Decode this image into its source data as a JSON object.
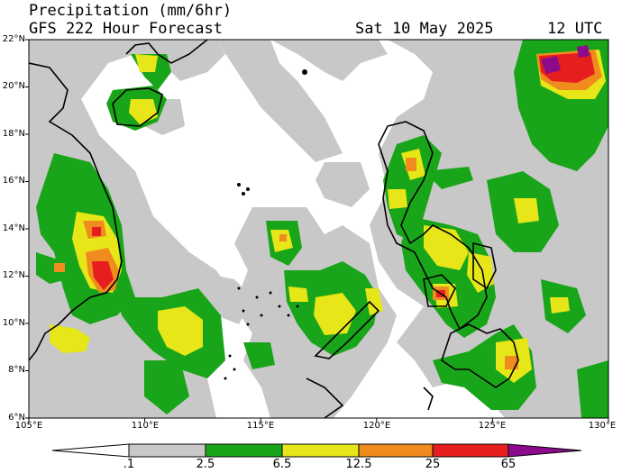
{
  "header": {
    "title_line1": "Precipitation (mm/6hr)",
    "title_line2": "GFS 222 Hour Forecast",
    "valid_date": "Sat 10 May 2025",
    "valid_hour": "12 UTC"
  },
  "map": {
    "lat_range": [
      6,
      22
    ],
    "lon_range": [
      105,
      130
    ],
    "lat_labels": [
      "22°N",
      "20°N",
      "18°N",
      "16°N",
      "14°N",
      "12°N",
      "10°N",
      "8°N",
      "6°N"
    ],
    "lon_labels": [
      "105°E",
      "110°E",
      "115°E",
      "120°E",
      "125°E",
      "130°E"
    ]
  },
  "colorbar": {
    "labels": [
      ".1",
      "2.5",
      "6.5",
      "12.5",
      "25",
      "65"
    ],
    "colors": {
      "trace": "#ffffff",
      "light": "#c8c8c8",
      "moderate": "#19a519",
      "heavy": "#e6e619",
      "very_heavy": "#f08c1e",
      "intense": "#e61e1e",
      "extreme": "#8c0a8c"
    }
  }
}
